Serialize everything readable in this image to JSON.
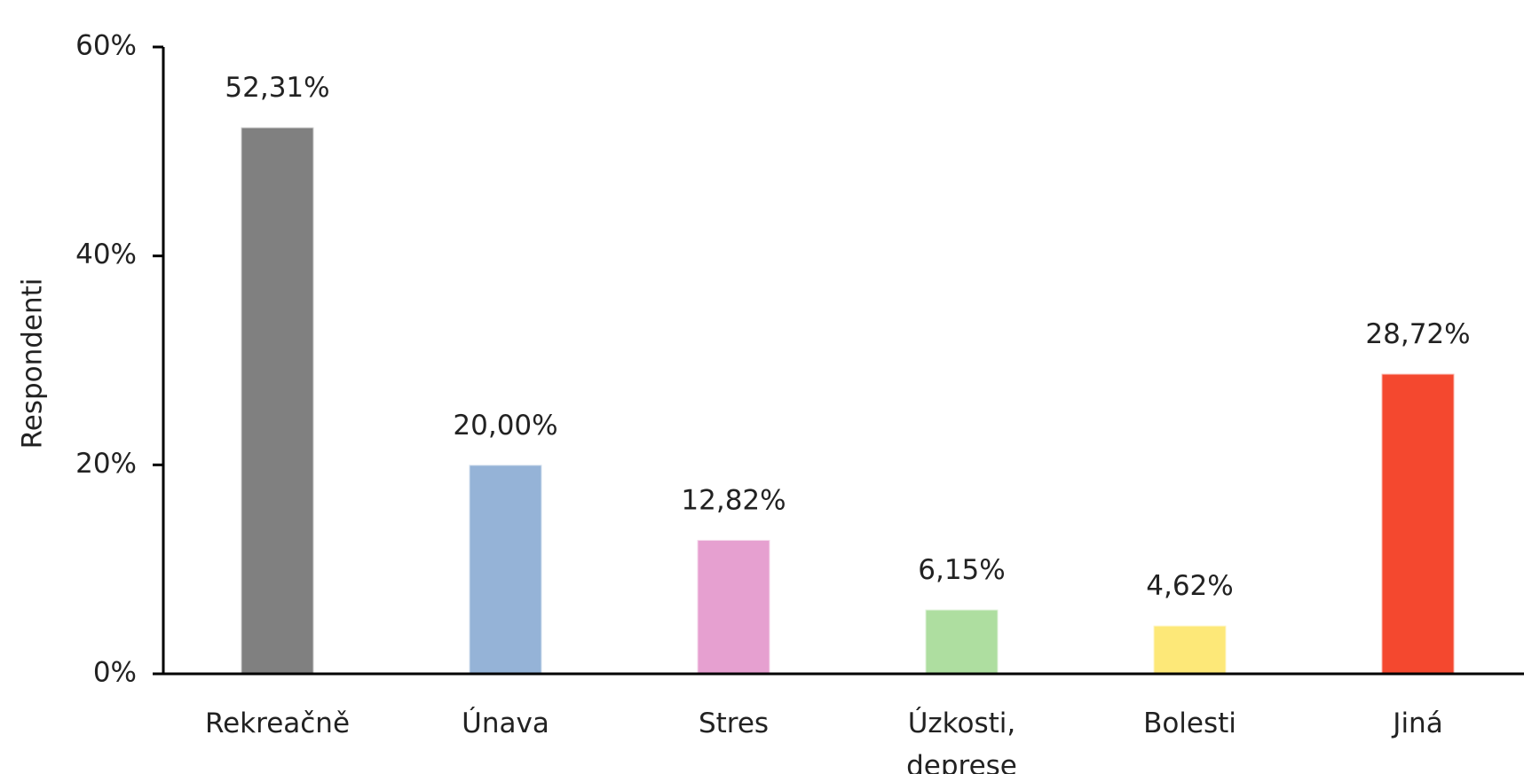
{
  "chart_data": {
    "type": "bar",
    "y_label": "Respondenti",
    "categories": [
      "Rekreačně",
      "Únava",
      "Stres",
      "Úzkosti, deprese",
      "Bolesti",
      "Jiná"
    ],
    "values": [
      52.31,
      20.0,
      12.82,
      6.15,
      4.62,
      28.72
    ],
    "value_labels": [
      "52,31%",
      "20,00%",
      "12,82%",
      "6,15%",
      "4,62%",
      "28,72%"
    ],
    "colors": [
      "#808080",
      "#95b3d7",
      "#e6a0d0",
      "#aedea0",
      "#fde878",
      "#f4482f"
    ],
    "ylim": [
      0,
      60
    ],
    "yticks": [
      {
        "value": 0,
        "label": "0%"
      },
      {
        "value": 20,
        "label": "20%"
      },
      {
        "value": 40,
        "label": "40%"
      },
      {
        "value": 60,
        "label": "60%"
      }
    ],
    "grid": false
  }
}
